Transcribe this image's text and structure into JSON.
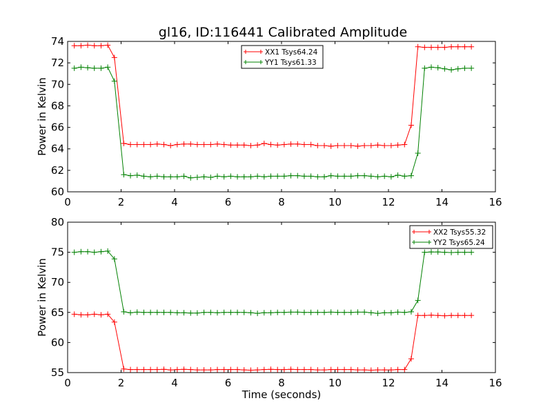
{
  "figure": {
    "title": "gl16, ID:116441 Calibrated Amplitude"
  },
  "chart_data": [
    {
      "type": "line",
      "title": "gl16, ID:116441 Calibrated Amplitude",
      "xlabel": "",
      "ylabel": "Power in Kelvin",
      "xlim": [
        0,
        16
      ],
      "ylim": [
        60,
        74
      ],
      "xticks": [
        "0",
        "2",
        "4",
        "6",
        "8",
        "10",
        "12",
        "14",
        "16"
      ],
      "yticks": [
        "60",
        "62",
        "64",
        "66",
        "68",
        "70",
        "72",
        "74"
      ],
      "grid": false,
      "legend": "upper-center",
      "series": [
        {
          "name": "XX1 Tsys64.24",
          "color": "#ff0000",
          "marker": "plus",
          "x": [
            0.25,
            0.5,
            0.75,
            1.0,
            1.25,
            1.5,
            1.75,
            2.1,
            2.35,
            2.6,
            2.85,
            3.1,
            3.35,
            3.6,
            3.85,
            4.1,
            4.35,
            4.6,
            4.85,
            5.1,
            5.35,
            5.6,
            5.85,
            6.1,
            6.35,
            6.6,
            6.85,
            7.1,
            7.35,
            7.6,
            7.85,
            8.1,
            8.35,
            8.6,
            8.85,
            9.1,
            9.35,
            9.6,
            9.85,
            10.1,
            10.35,
            10.6,
            10.85,
            11.1,
            11.35,
            11.6,
            11.85,
            12.1,
            12.35,
            12.6,
            12.85,
            13.1,
            13.35,
            13.6,
            13.85,
            14.1,
            14.35,
            14.6,
            14.85,
            15.1
          ],
          "y": [
            73.6,
            73.6,
            73.65,
            73.6,
            73.6,
            73.65,
            72.5,
            64.5,
            64.4,
            64.4,
            64.4,
            64.4,
            64.45,
            64.4,
            64.3,
            64.4,
            64.45,
            64.45,
            64.4,
            64.4,
            64.4,
            64.45,
            64.4,
            64.35,
            64.35,
            64.35,
            64.3,
            64.35,
            64.5,
            64.4,
            64.35,
            64.4,
            64.45,
            64.45,
            64.4,
            64.4,
            64.3,
            64.3,
            64.25,
            64.3,
            64.3,
            64.3,
            64.25,
            64.3,
            64.3,
            64.35,
            64.3,
            64.3,
            64.35,
            64.4,
            66.2,
            73.5,
            73.45,
            73.45,
            73.45,
            73.45,
            73.5,
            73.5,
            73.5,
            73.5
          ]
        },
        {
          "name": "YY1 Tsys61.33",
          "color": "#008000",
          "marker": "plus",
          "x": [
            0.25,
            0.5,
            0.75,
            1.0,
            1.25,
            1.5,
            1.75,
            2.1,
            2.35,
            2.6,
            2.85,
            3.1,
            3.35,
            3.6,
            3.85,
            4.1,
            4.35,
            4.6,
            4.85,
            5.1,
            5.35,
            5.6,
            5.85,
            6.1,
            6.35,
            6.6,
            6.85,
            7.1,
            7.35,
            7.6,
            7.85,
            8.1,
            8.35,
            8.6,
            8.85,
            9.1,
            9.35,
            9.6,
            9.85,
            10.1,
            10.35,
            10.6,
            10.85,
            11.1,
            11.35,
            11.6,
            11.85,
            12.1,
            12.35,
            12.6,
            12.85,
            13.1,
            13.35,
            13.6,
            13.85,
            14.1,
            14.35,
            14.6,
            14.85,
            15.1
          ],
          "y": [
            71.5,
            71.6,
            71.55,
            71.5,
            71.5,
            71.6,
            70.3,
            61.6,
            61.5,
            61.55,
            61.45,
            61.4,
            61.45,
            61.4,
            61.4,
            61.4,
            61.45,
            61.3,
            61.35,
            61.4,
            61.35,
            61.45,
            61.4,
            61.45,
            61.4,
            61.4,
            61.4,
            61.45,
            61.4,
            61.45,
            61.45,
            61.45,
            61.5,
            61.5,
            61.45,
            61.45,
            61.4,
            61.4,
            61.5,
            61.45,
            61.45,
            61.45,
            61.5,
            61.5,
            61.45,
            61.4,
            61.45,
            61.4,
            61.55,
            61.45,
            61.5,
            63.6,
            71.5,
            71.6,
            71.55,
            71.45,
            71.35,
            71.45,
            71.5,
            71.5
          ]
        }
      ]
    },
    {
      "type": "line",
      "title": "",
      "xlabel": "Time (seconds)",
      "ylabel": "Power in Kelvin",
      "xlim": [
        0,
        16
      ],
      "ylim": [
        55,
        80
      ],
      "xticks": [
        "0",
        "2",
        "4",
        "6",
        "8",
        "10",
        "12",
        "14",
        "16"
      ],
      "yticks": [
        "55",
        "60",
        "65",
        "70",
        "75",
        "80"
      ],
      "grid": false,
      "legend": "upper-right",
      "series": [
        {
          "name": "XX2 Tsys55.32",
          "color": "#ff0000",
          "marker": "plus",
          "x": [
            0.25,
            0.5,
            0.75,
            1.0,
            1.25,
            1.5,
            1.75,
            2.1,
            2.35,
            2.6,
            2.85,
            3.1,
            3.35,
            3.6,
            3.85,
            4.1,
            4.35,
            4.6,
            4.85,
            5.1,
            5.35,
            5.6,
            5.85,
            6.1,
            6.35,
            6.6,
            6.85,
            7.1,
            7.35,
            7.6,
            7.85,
            8.1,
            8.35,
            8.6,
            8.85,
            9.1,
            9.35,
            9.6,
            9.85,
            10.1,
            10.35,
            10.6,
            10.85,
            11.1,
            11.35,
            11.6,
            11.85,
            12.1,
            12.35,
            12.6,
            12.85,
            13.1,
            13.35,
            13.6,
            13.85,
            14.1,
            14.35,
            14.6,
            14.85,
            15.1
          ],
          "y": [
            64.7,
            64.6,
            64.6,
            64.7,
            64.6,
            64.7,
            63.4,
            55.6,
            55.5,
            55.5,
            55.5,
            55.5,
            55.5,
            55.55,
            55.45,
            55.5,
            55.55,
            55.5,
            55.45,
            55.45,
            55.45,
            55.5,
            55.5,
            55.5,
            55.5,
            55.45,
            55.4,
            55.45,
            55.5,
            55.55,
            55.5,
            55.5,
            55.55,
            55.5,
            55.5,
            55.5,
            55.45,
            55.45,
            55.5,
            55.5,
            55.5,
            55.5,
            55.45,
            55.45,
            55.4,
            55.45,
            55.45,
            55.45,
            55.5,
            55.5,
            57.3,
            64.5,
            64.5,
            64.55,
            64.5,
            64.45,
            64.5,
            64.5,
            64.5,
            64.5
          ]
        },
        {
          "name": "YY2 Tsys65.24",
          "color": "#008000",
          "marker": "plus",
          "x": [
            0.25,
            0.5,
            0.75,
            1.0,
            1.25,
            1.5,
            1.75,
            2.1,
            2.35,
            2.6,
            2.85,
            3.1,
            3.35,
            3.6,
            3.85,
            4.1,
            4.35,
            4.6,
            4.85,
            5.1,
            5.35,
            5.6,
            5.85,
            6.1,
            6.35,
            6.6,
            6.85,
            7.1,
            7.35,
            7.6,
            7.85,
            8.1,
            8.35,
            8.6,
            8.85,
            9.1,
            9.35,
            9.6,
            9.85,
            10.1,
            10.35,
            10.6,
            10.85,
            11.1,
            11.35,
            11.6,
            11.85,
            12.1,
            12.35,
            12.6,
            12.85,
            13.1,
            13.35,
            13.6,
            13.85,
            14.1,
            14.35,
            14.6,
            14.85,
            15.1
          ],
          "y": [
            75.0,
            75.1,
            75.1,
            75.0,
            75.1,
            75.2,
            73.9,
            65.1,
            64.95,
            65.05,
            65.0,
            65.0,
            65.0,
            65.0,
            65.0,
            64.95,
            64.95,
            64.9,
            64.9,
            65.0,
            65.0,
            64.95,
            65.0,
            65.0,
            65.0,
            65.0,
            64.95,
            64.85,
            64.95,
            64.95,
            65.0,
            65.0,
            65.05,
            65.05,
            65.0,
            65.0,
            65.0,
            65.0,
            65.05,
            65.0,
            65.0,
            65.0,
            65.05,
            65.05,
            64.95,
            64.85,
            64.95,
            64.95,
            65.05,
            65.0,
            65.1,
            67.0,
            75.0,
            75.05,
            75.05,
            75.0,
            74.95,
            75.0,
            75.0,
            75.0
          ]
        }
      ]
    }
  ]
}
